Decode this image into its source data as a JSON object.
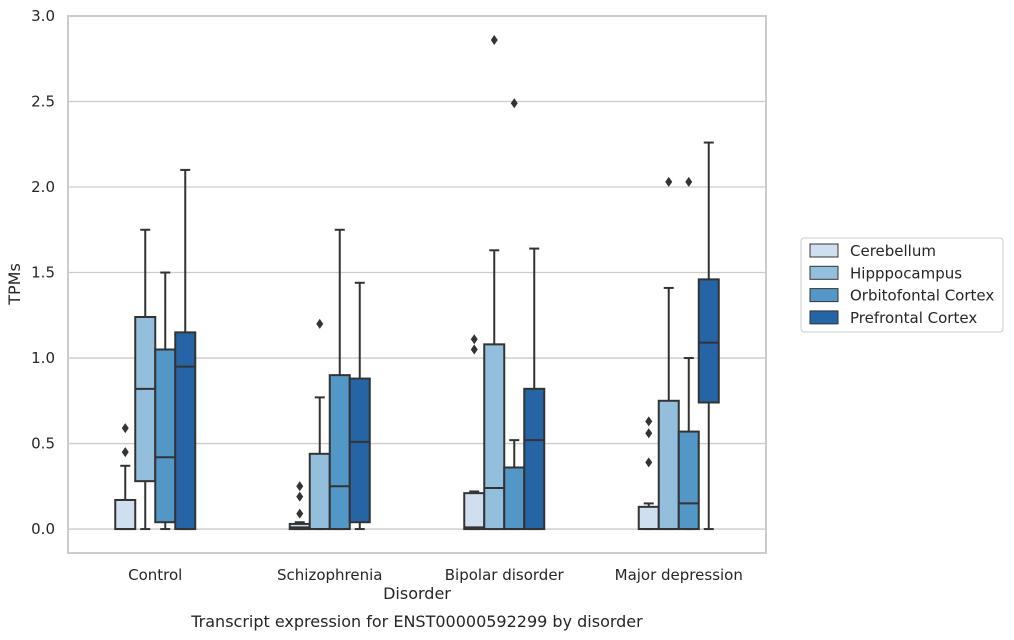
{
  "chart_data": {
    "type": "box",
    "title": "",
    "caption": "Transcript expression for ENST00000592299 by disorder",
    "xlabel": "Disorder",
    "ylabel": "TPMs",
    "ylim": [
      -0.14,
      3.0
    ],
    "yticks": [
      "0.0",
      "0.5",
      "1.0",
      "1.5",
      "2.0",
      "2.5",
      "3.0"
    ],
    "grid": "y",
    "legend_position": "right",
    "categories": [
      "Control",
      "Schizophrenia",
      "Bipolar disorder",
      "Major depression"
    ],
    "series": [
      {
        "name": "Cerebellum",
        "color": "#cfdff0",
        "boxes": [
          {
            "min": 0.0,
            "q1": 0.0,
            "median": 0.0,
            "q3": 0.17,
            "max": 0.37,
            "outliers": [
              0.45,
              0.59
            ]
          },
          {
            "min": 0.0,
            "q1": 0.0,
            "median": 0.01,
            "q3": 0.03,
            "max": 0.04,
            "outliers": [
              0.09,
              0.19,
              0.25
            ]
          },
          {
            "min": 0.0,
            "q1": 0.0,
            "median": 0.01,
            "q3": 0.21,
            "max": 0.22,
            "outliers": [
              1.05,
              1.11
            ]
          },
          {
            "min": 0.0,
            "q1": 0.0,
            "median": 0.0,
            "q3": 0.13,
            "max": 0.15,
            "outliers": [
              0.39,
              0.56,
              0.63
            ]
          }
        ]
      },
      {
        "name": "Hipppocampus",
        "color": "#94bfdc",
        "boxes": [
          {
            "min": 0.0,
            "q1": 0.28,
            "median": 0.82,
            "q3": 1.24,
            "max": 1.75,
            "outliers": []
          },
          {
            "min": 0.0,
            "q1": 0.0,
            "median": 0.0,
            "q3": 0.44,
            "max": 0.77,
            "outliers": [
              1.2
            ]
          },
          {
            "min": 0.0,
            "q1": 0.0,
            "median": 0.24,
            "q3": 1.08,
            "max": 1.63,
            "outliers": [
              2.86
            ]
          },
          {
            "min": 0.0,
            "q1": 0.0,
            "median": 0.0,
            "q3": 0.75,
            "max": 1.41,
            "outliers": [
              2.03
            ]
          }
        ]
      },
      {
        "name": "Orbitofontal Cortex",
        "color": "#5297c5",
        "boxes": [
          {
            "min": 0.0,
            "q1": 0.04,
            "median": 0.42,
            "q3": 1.05,
            "max": 1.5,
            "outliers": []
          },
          {
            "min": 0.0,
            "q1": 0.0,
            "median": 0.25,
            "q3": 0.9,
            "max": 1.75,
            "outliers": []
          },
          {
            "min": 0.0,
            "q1": 0.0,
            "median": 0.0,
            "q3": 0.36,
            "max": 0.52,
            "outliers": [
              2.49
            ]
          },
          {
            "min": 0.0,
            "q1": 0.0,
            "median": 0.15,
            "q3": 0.57,
            "max": 1.0,
            "outliers": [
              2.03
            ]
          }
        ]
      },
      {
        "name": "Prefrontal Cortex",
        "color": "#2565a6",
        "boxes": [
          {
            "min": 0.0,
            "q1": 0.0,
            "median": 0.95,
            "q3": 1.15,
            "max": 2.1,
            "outliers": []
          },
          {
            "min": 0.0,
            "q1": 0.04,
            "median": 0.51,
            "q3": 0.88,
            "max": 1.44,
            "outliers": []
          },
          {
            "min": 0.0,
            "q1": 0.0,
            "median": 0.52,
            "q3": 0.82,
            "max": 1.64,
            "outliers": []
          },
          {
            "min": 0.0,
            "q1": 0.74,
            "median": 1.09,
            "q3": 1.46,
            "max": 2.26,
            "outliers": []
          }
        ]
      }
    ],
    "style": {
      "line_color": "#333333",
      "grid_color": "#cccccc",
      "frame_color": "#cccccc"
    }
  }
}
